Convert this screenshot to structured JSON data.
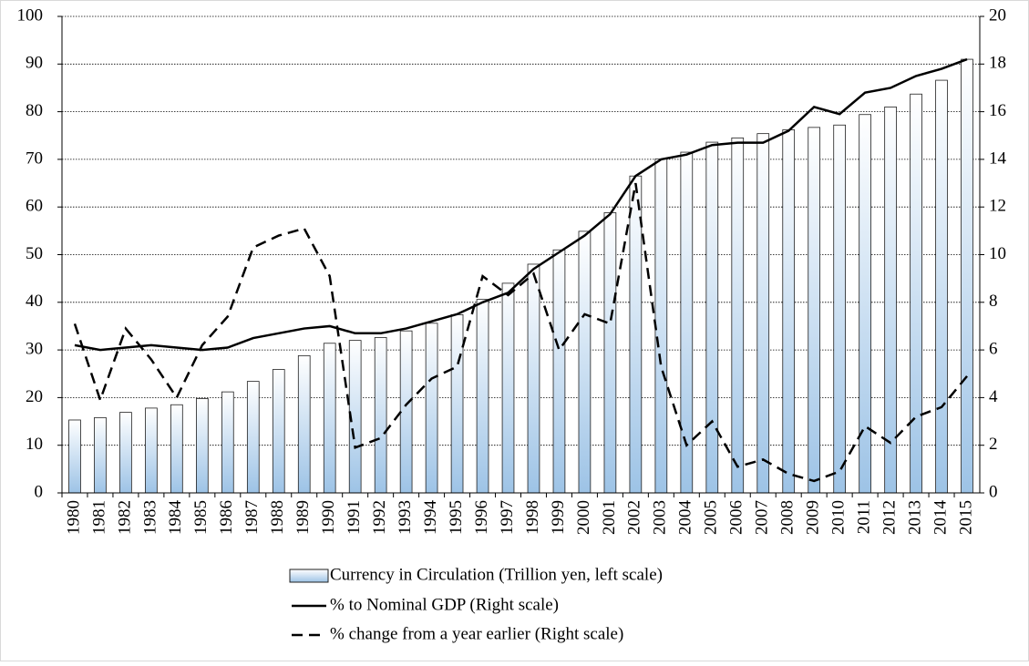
{
  "chart_data": {
    "type": "bar-line",
    "categories": [
      "1980",
      "1981",
      "1982",
      "1983",
      "1984",
      "1985",
      "1986",
      "1987",
      "1988",
      "1989",
      "1990",
      "1991",
      "1992",
      "1993",
      "1994",
      "1995",
      "1996",
      "1997",
      "1998",
      "1999",
      "2000",
      "2001",
      "2002",
      "2003",
      "2004",
      "2005",
      "2006",
      "2007",
      "2008",
      "2009",
      "2010",
      "2011",
      "2012",
      "2013",
      "2014",
      "2015"
    ],
    "series": [
      {
        "name": "Currency in Circulation (Trillion yen, left scale)",
        "type": "bar",
        "color": "#9dc3e6",
        "values": [
          15.3,
          15.8,
          16.9,
          17.8,
          18.5,
          19.8,
          21.2,
          23.4,
          25.9,
          28.8,
          31.4,
          32.0,
          32.6,
          34.0,
          35.6,
          37.4,
          40.6,
          44.0,
          48.0,
          51.0,
          54.9,
          58.8,
          66.5,
          70.1,
          71.5,
          73.6,
          74.5,
          75.4,
          76.2,
          76.7,
          77.2,
          79.4,
          81.0,
          83.7,
          86.6,
          91.0
        ]
      },
      {
        "name": "% to Nominal GDP (Right scale)",
        "type": "line",
        "axis": "y2",
        "color": "#000000",
        "line_style": "solid",
        "values": [
          6.2,
          6.0,
          6.1,
          6.2,
          6.1,
          6.0,
          6.1,
          6.5,
          6.7,
          6.9,
          7.0,
          6.7,
          6.7,
          6.9,
          7.2,
          7.5,
          8.0,
          8.4,
          9.4,
          10.1,
          10.8,
          11.7,
          13.3,
          14.0,
          14.2,
          14.6,
          14.7,
          14.7,
          15.2,
          16.2,
          15.9,
          16.8,
          17.0,
          17.5,
          17.8,
          18.2
        ]
      },
      {
        "name": "% change from a year earlier (Right scale)",
        "type": "line",
        "axis": "y2",
        "color": "#000000",
        "line_style": "dashed",
        "values": [
          7.1,
          3.9,
          6.9,
          5.6,
          4.0,
          6.2,
          7.4,
          10.3,
          10.8,
          11.1,
          9.1,
          1.9,
          2.3,
          3.7,
          4.8,
          5.3,
          9.1,
          8.3,
          9.2,
          6.0,
          7.5,
          7.1,
          13.0,
          5.3,
          2.0,
          3.0,
          1.1,
          1.4,
          0.8,
          0.5,
          0.9,
          2.8,
          2.1,
          3.2,
          3.6,
          4.9
        ]
      }
    ],
    "ylim": [
      0,
      100
    ],
    "yticks": [
      0,
      10,
      20,
      30,
      40,
      50,
      60,
      70,
      80,
      90,
      100
    ],
    "y2lim": [
      0,
      20
    ],
    "y2ticks": [
      0,
      2,
      4,
      6,
      8,
      10,
      12,
      14,
      16,
      18,
      20
    ],
    "grid": true
  }
}
